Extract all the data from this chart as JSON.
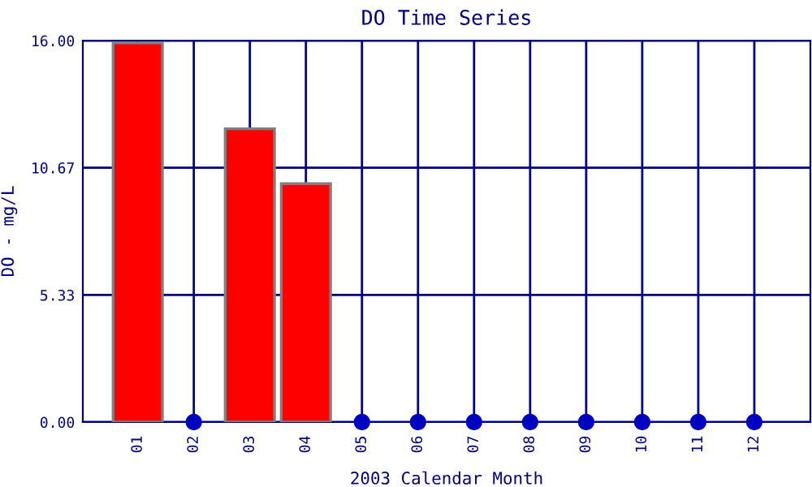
{
  "chart_data": {
    "type": "bar",
    "title": "DO Time Series",
    "xlabel": "2003 Calendar Month",
    "ylabel": "DO - mg/L",
    "categories": [
      "01",
      "02",
      "03",
      "04",
      "05",
      "06",
      "07",
      "08",
      "09",
      "10",
      "11",
      "12"
    ],
    "series": [
      {
        "color": "#ff0000",
        "values": [
          15.9,
          null,
          12.3,
          10.0,
          null,
          null,
          null,
          null,
          null,
          null,
          null,
          null
        ]
      },
      {
        "type": "scatter",
        "color": "#0000c0",
        "values": [
          null,
          0,
          null,
          null,
          0,
          0,
          0,
          0,
          0,
          0,
          0,
          0
        ]
      }
    ],
    "ylim": [
      0,
      16
    ],
    "yticks": [
      {
        "value": 0,
        "label": "0.00"
      },
      {
        "value": 5.33,
        "label": "5.33"
      },
      {
        "value": 10.67,
        "label": "10.67"
      },
      {
        "value": 16,
        "label": "16.00"
      }
    ],
    "grid": true,
    "marker": "circle"
  }
}
